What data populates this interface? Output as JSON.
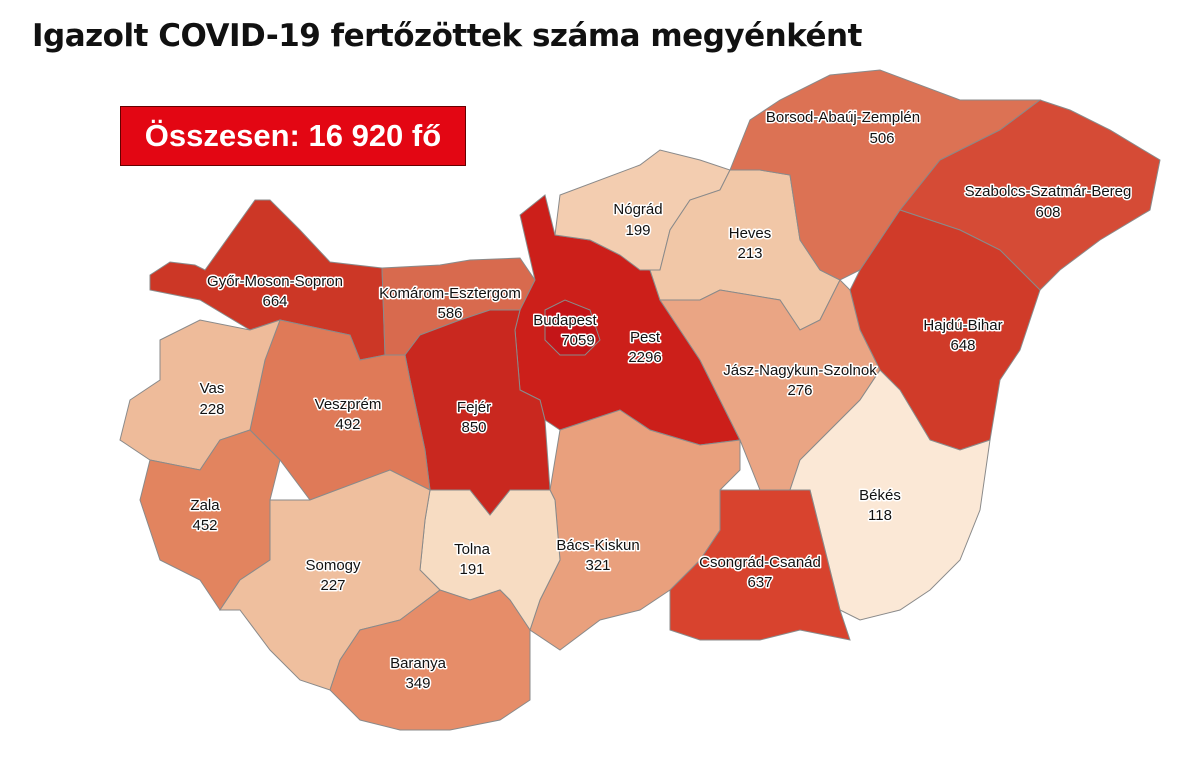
{
  "title": "Igazolt COVID-19 fertőzöttek száma megyénként",
  "total_label": "Összesen: 16 920 fő",
  "counties": {
    "gyor": {
      "name": "Győr-Moson-Sopron",
      "value": "664",
      "color": "#cc3726"
    },
    "komarom": {
      "name": "Komárom-Esztergom",
      "value": "586",
      "color": "#d86a4e"
    },
    "pest": {
      "name": "Pest",
      "value": "2296",
      "color": "#cc1f1a"
    },
    "budapest": {
      "name": "Budapest",
      "value": "7059",
      "color": "#c41518"
    },
    "nograd": {
      "name": "Nógrád",
      "value": "199",
      "color": "#f3cdb0"
    },
    "heves": {
      "name": "Heves",
      "value": "213",
      "color": "#f1c7a7"
    },
    "borsod": {
      "name": "Borsod-Abaúj-Zemplén",
      "value": "506",
      "color": "#dc7254"
    },
    "szabolcs": {
      "name": "Szabolcs-Szatmár-Bereg",
      "value": "608",
      "color": "#d54b36"
    },
    "hajdu": {
      "name": "Hajdú-Bihar",
      "value": "648",
      "color": "#d03b29"
    },
    "jnsz": {
      "name": "Jász-Nagykun-Szolnok",
      "value": "276",
      "color": "#eaa584"
    },
    "bekes": {
      "name": "Békés",
      "value": "118",
      "color": "#fbe8d6"
    },
    "csongrad": {
      "name": "Csongrád-Csanád",
      "value": "637",
      "color": "#d8432e"
    },
    "bacs": {
      "name": "Bács-Kiskun",
      "value": "321",
      "color": "#e9a07d"
    },
    "tolna": {
      "name": "Tolna",
      "value": "191",
      "color": "#f7dcc2"
    },
    "fejer": {
      "name": "Fejér",
      "value": "850",
      "color": "#c9281f"
    },
    "veszprem": {
      "name": "Veszprém",
      "value": "492",
      "color": "#df7a58"
    },
    "vas": {
      "name": "Vas",
      "value": "228",
      "color": "#eebb9a"
    },
    "zala": {
      "name": "Zala",
      "value": "452",
      "color": "#e2845f"
    },
    "somogy": {
      "name": "Somogy",
      "value": "227",
      "color": "#efbf9e"
    },
    "baranya": {
      "name": "Baranya",
      "value": "349",
      "color": "#e68d69"
    }
  }
}
